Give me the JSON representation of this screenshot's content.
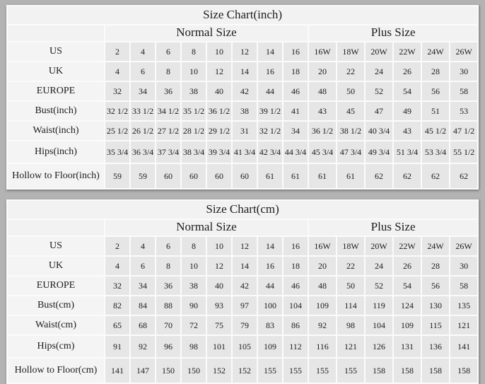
{
  "page": {
    "background_color": "#b3b3b3",
    "table_grid_color": "#fbfbfb",
    "value_cell_color": "#e6e6e6",
    "header_cell_color": "#f2f2f2"
  },
  "chart_data": [
    {
      "type": "table",
      "title": "Size Chart(inch)",
      "column_groups": [
        {
          "label": "Normal Size",
          "span": 8
        },
        {
          "label": "Plus Size",
          "span": 6
        }
      ],
      "rows": [
        {
          "label": "US",
          "values": [
            "2",
            "4",
            "6",
            "8",
            "10",
            "12",
            "14",
            "16",
            "16W",
            "18W",
            "20W",
            "22W",
            "24W",
            "26W"
          ]
        },
        {
          "label": "UK",
          "values": [
            "4",
            "6",
            "8",
            "10",
            "12",
            "14",
            "16",
            "18",
            "20",
            "22",
            "24",
            "26",
            "28",
            "30"
          ]
        },
        {
          "label": "EUROPE",
          "values": [
            "32",
            "34",
            "36",
            "38",
            "40",
            "42",
            "44",
            "46",
            "48",
            "50",
            "52",
            "54",
            "56",
            "58"
          ]
        },
        {
          "label": "Bust(inch)",
          "values": [
            "32 1/2",
            "33 1/2",
            "34 1/2",
            "35 1/2",
            "36 1/2",
            "38",
            "39 1/2",
            "41",
            "43",
            "45",
            "47",
            "49",
            "51",
            "53"
          ]
        },
        {
          "label": "Waist(inch)",
          "values": [
            "25 1/2",
            "26 1/2",
            "27 1/2",
            "28 1/2",
            "29 1/2",
            "31",
            "32 1/2",
            "34",
            "36 1/2",
            "38 1/2",
            "40 3/4",
            "43",
            "45 1/2",
            "47 1/2"
          ]
        },
        {
          "label": "Hips(inch)",
          "values": [
            "35 3/4",
            "36 3/4",
            "37 3/4",
            "38 3/4",
            "39 3/4",
            "41 3/4",
            "42 3/4",
            "44 3/4",
            "45 3/4",
            "47 3/4",
            "49 3/4",
            "51 3/4",
            "53 3/4",
            "55 1/2"
          ]
        },
        {
          "label": "Hollow to Floor(inch)",
          "values": [
            "59",
            "59",
            "60",
            "60",
            "60",
            "60",
            "61",
            "61",
            "61",
            "61",
            "62",
            "62",
            "62",
            "62"
          ]
        }
      ]
    },
    {
      "type": "table",
      "title": "Size Chart(cm)",
      "column_groups": [
        {
          "label": "Normal Size",
          "span": 8
        },
        {
          "label": "Plus Size",
          "span": 6
        }
      ],
      "rows": [
        {
          "label": "US",
          "values": [
            "2",
            "4",
            "6",
            "8",
            "10",
            "12",
            "14",
            "16",
            "16W",
            "18W",
            "20W",
            "22W",
            "24W",
            "26W"
          ]
        },
        {
          "label": "UK",
          "values": [
            "4",
            "6",
            "8",
            "10",
            "12",
            "14",
            "16",
            "18",
            "20",
            "22",
            "24",
            "26",
            "28",
            "30"
          ]
        },
        {
          "label": "EUROPE",
          "values": [
            "32",
            "34",
            "36",
            "38",
            "40",
            "42",
            "44",
            "46",
            "48",
            "50",
            "52",
            "54",
            "56",
            "58"
          ]
        },
        {
          "label": "Bust(cm)",
          "values": [
            "82",
            "84",
            "88",
            "90",
            "93",
            "97",
            "100",
            "104",
            "109",
            "114",
            "119",
            "124",
            "130",
            "135"
          ]
        },
        {
          "label": "Waist(cm)",
          "values": [
            "65",
            "68",
            "70",
            "72",
            "75",
            "79",
            "83",
            "86",
            "92",
            "98",
            "104",
            "109",
            "115",
            "121"
          ]
        },
        {
          "label": "Hips(cm)",
          "values": [
            "91",
            "92",
            "96",
            "98",
            "101",
            "105",
            "109",
            "112",
            "116",
            "121",
            "126",
            "131",
            "136",
            "141"
          ]
        },
        {
          "label": "Hollow to Floor(cm)",
          "values": [
            "141",
            "147",
            "150",
            "150",
            "152",
            "152",
            "155",
            "155",
            "155",
            "155",
            "158",
            "158",
            "158",
            "158"
          ]
        }
      ]
    }
  ]
}
